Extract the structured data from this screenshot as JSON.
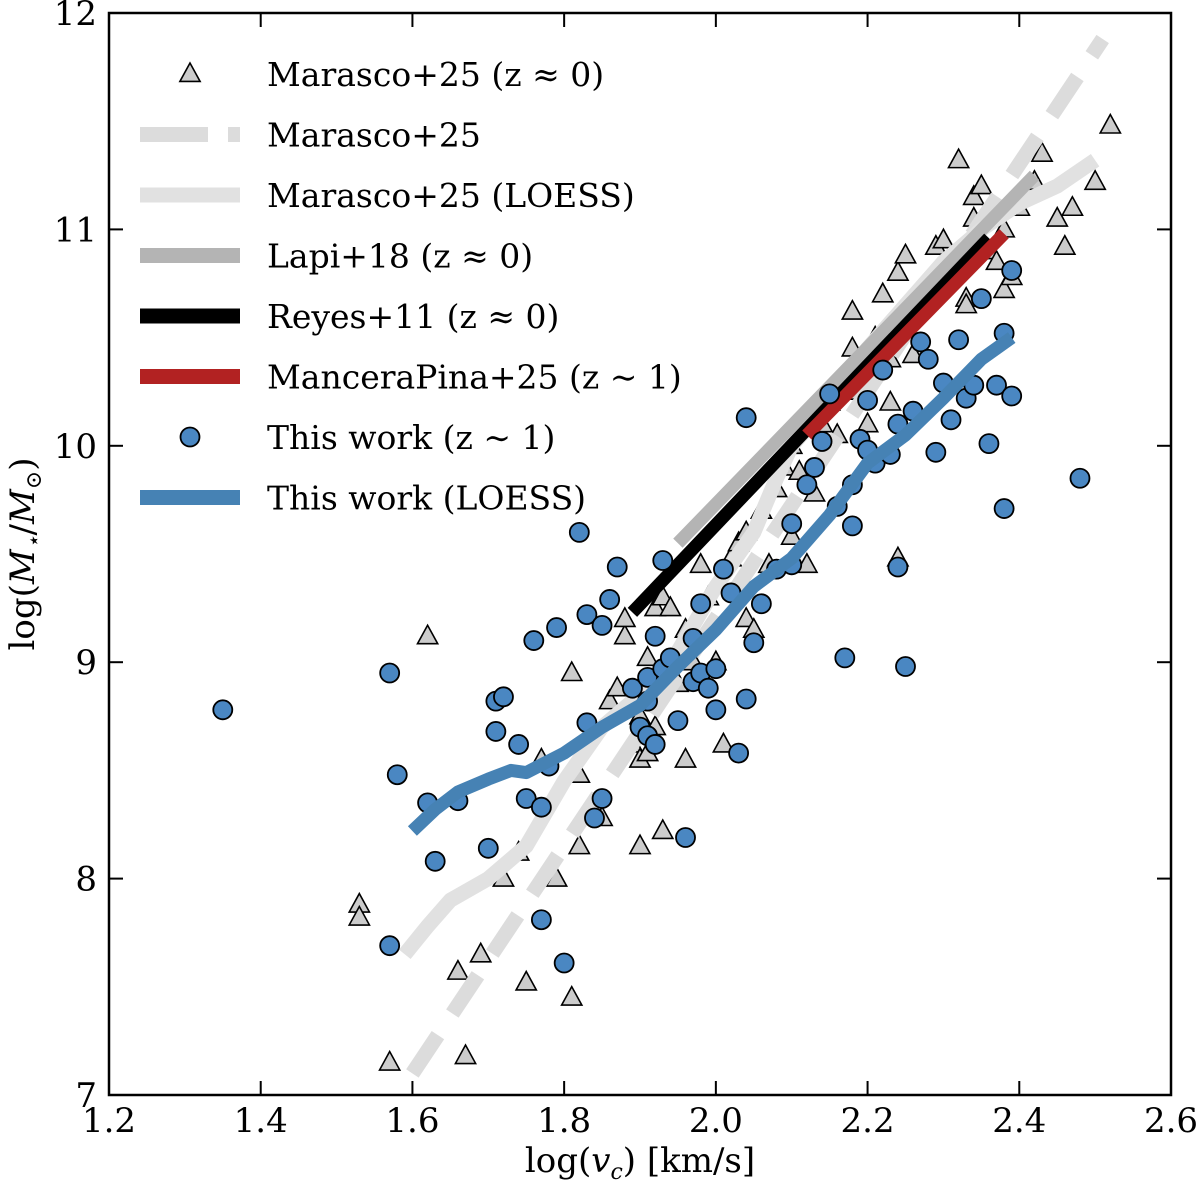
{
  "chart_data": {
    "type": "scatter",
    "xlabel": "log(v_c) [km/s]",
    "ylabel": "log(M_⋆/M_⊙)",
    "xlim": [
      1.2,
      2.6
    ],
    "ylim": [
      7,
      12
    ],
    "xticks": [
      1.2,
      1.4,
      1.6,
      1.8,
      2.0,
      2.2,
      2.4,
      2.6
    ],
    "xtick_labels": [
      "1.2",
      "1.4",
      "1.6",
      "1.8",
      "2.0",
      "2.2",
      "2.4",
      "2.6"
    ],
    "yticks": [
      7,
      8,
      9,
      10,
      11,
      12
    ],
    "ytick_labels": [
      "7",
      "8",
      "9",
      "10",
      "11",
      "12"
    ],
    "grid": false,
    "legend_position": "top-left",
    "legend": [
      {
        "label": "Marasco+25 (z ≈ 0)",
        "marker": "triangle",
        "color": "#cccccc"
      },
      {
        "label": "Marasco+25",
        "marker": "dashed-line",
        "color": "#dcdcdc"
      },
      {
        "label": "Marasco+25 (LOESS)",
        "marker": "line",
        "color": "#e1e1e1"
      },
      {
        "label": "Lapi+18 (z ≈ 0)",
        "marker": "line",
        "color": "#b4b4b4"
      },
      {
        "label": "Reyes+11 (z ≈ 0)",
        "marker": "line",
        "color": "#000000"
      },
      {
        "label": "ManceraPina+25 (z ∼ 1)",
        "marker": "line",
        "color": "#b22222"
      },
      {
        "label": "This work (z ∼ 1)",
        "marker": "circle",
        "color": "#4a87c2"
      },
      {
        "label": "This work (LOESS)",
        "marker": "line",
        "color": "#4682b4"
      }
    ],
    "series": [
      {
        "name": "Marasco+25 (z ≈ 0)",
        "kind": "scatter-triangle",
        "color": "#cccccc",
        "points": [
          [
            1.53,
            7.88
          ],
          [
            1.53,
            7.82
          ],
          [
            1.57,
            7.15
          ],
          [
            1.62,
            9.12
          ],
          [
            1.66,
            7.57
          ],
          [
            1.67,
            7.18
          ],
          [
            1.69,
            7.65
          ],
          [
            1.72,
            8.0
          ],
          [
            1.74,
            8.12
          ],
          [
            1.75,
            7.52
          ],
          [
            1.77,
            8.55
          ],
          [
            1.79,
            8.0
          ],
          [
            1.81,
            8.95
          ],
          [
            1.81,
            7.45
          ],
          [
            1.82,
            8.15
          ],
          [
            1.82,
            8.48
          ],
          [
            1.84,
            8.3
          ],
          [
            1.85,
            8.28
          ],
          [
            1.86,
            8.82
          ],
          [
            1.87,
            8.88
          ],
          [
            1.88,
            9.12
          ],
          [
            1.88,
            9.2
          ],
          [
            1.89,
            8.62
          ],
          [
            1.9,
            8.75
          ],
          [
            1.9,
            8.55
          ],
          [
            1.9,
            8.15
          ],
          [
            1.91,
            9.02
          ],
          [
            1.91,
            8.58
          ],
          [
            1.92,
            8.7
          ],
          [
            1.92,
            9.25
          ],
          [
            1.93,
            9.3
          ],
          [
            1.93,
            8.22
          ],
          [
            1.94,
            9.25
          ],
          [
            1.95,
            8.9
          ],
          [
            1.96,
            9.15
          ],
          [
            1.96,
            8.55
          ],
          [
            1.97,
            9.0
          ],
          [
            1.98,
            9.45
          ],
          [
            1.99,
            9.3
          ],
          [
            2.0,
            9.0
          ],
          [
            2.01,
            8.62
          ],
          [
            2.02,
            9.48
          ],
          [
            2.03,
            9.55
          ],
          [
            2.04,
            9.6
          ],
          [
            2.04,
            9.2
          ],
          [
            2.05,
            9.15
          ],
          [
            2.06,
            9.7
          ],
          [
            2.07,
            9.45
          ],
          [
            2.08,
            9.8
          ],
          [
            2.09,
            9.9
          ],
          [
            2.1,
            10.0
          ],
          [
            2.1,
            9.58
          ],
          [
            2.11,
            9.88
          ],
          [
            2.12,
            9.45
          ],
          [
            2.13,
            9.78
          ],
          [
            2.14,
            10.1
          ],
          [
            2.15,
            10.2
          ],
          [
            2.16,
            10.05
          ],
          [
            2.17,
            10.3
          ],
          [
            2.18,
            10.45
          ],
          [
            2.18,
            10.62
          ],
          [
            2.19,
            10.25
          ],
          [
            2.2,
            10.1
          ],
          [
            2.21,
            10.5
          ],
          [
            2.22,
            10.7
          ],
          [
            2.23,
            10.4
          ],
          [
            2.23,
            10.2
          ],
          [
            2.24,
            10.8
          ],
          [
            2.24,
            9.48
          ],
          [
            2.25,
            10.55
          ],
          [
            2.25,
            10.88
          ],
          [
            2.26,
            10.42
          ],
          [
            2.27,
            10.65
          ],
          [
            2.28,
            10.75
          ],
          [
            2.29,
            10.92
          ],
          [
            2.3,
            10.95
          ],
          [
            2.31,
            10.8
          ],
          [
            2.32,
            11.32
          ],
          [
            2.33,
            10.68
          ],
          [
            2.33,
            10.65
          ],
          [
            2.34,
            11.15
          ],
          [
            2.34,
            11.05
          ],
          [
            2.35,
            11.2
          ],
          [
            2.36,
            10.9
          ],
          [
            2.37,
            10.85
          ],
          [
            2.38,
            11.0
          ],
          [
            2.38,
            10.72
          ],
          [
            2.39,
            10.78
          ],
          [
            2.4,
            11.1
          ],
          [
            2.42,
            11.22
          ],
          [
            2.43,
            11.35
          ],
          [
            2.45,
            11.05
          ],
          [
            2.46,
            10.92
          ],
          [
            2.47,
            11.1
          ],
          [
            2.5,
            11.22
          ],
          [
            2.52,
            11.48
          ]
        ]
      },
      {
        "name": "Marasco+25",
        "kind": "dashed-line",
        "color": "#dcdcdc",
        "points": [
          [
            1.6,
            7.1
          ],
          [
            2.51,
            11.88
          ]
        ]
      },
      {
        "name": "Marasco+25 (LOESS)",
        "kind": "line",
        "color": "#e1e1e1",
        "points": [
          [
            1.59,
            7.65
          ],
          [
            1.62,
            7.78
          ],
          [
            1.65,
            7.9
          ],
          [
            1.7,
            8.0
          ],
          [
            1.75,
            8.15
          ],
          [
            1.8,
            8.45
          ],
          [
            1.85,
            8.7
          ],
          [
            1.9,
            8.85
          ],
          [
            1.95,
            9.05
          ],
          [
            2.0,
            9.35
          ],
          [
            2.05,
            9.6
          ],
          [
            2.08,
            9.85
          ],
          [
            2.1,
            10.0
          ],
          [
            2.15,
            10.2
          ],
          [
            2.2,
            10.45
          ],
          [
            2.25,
            10.65
          ],
          [
            2.3,
            10.85
          ],
          [
            2.35,
            11.0
          ],
          [
            2.4,
            11.12
          ],
          [
            2.45,
            11.2
          ],
          [
            2.5,
            11.32
          ]
        ]
      },
      {
        "name": "Lapi+18 (z ≈ 0)",
        "kind": "line",
        "color": "#b4b4b4",
        "points": [
          [
            1.95,
            9.55
          ],
          [
            2.42,
            11.25
          ]
        ]
      },
      {
        "name": "Reyes+11 (z ≈ 0)",
        "kind": "line",
        "color": "#000000",
        "points": [
          [
            1.89,
            9.23
          ],
          [
            2.36,
            10.96
          ]
        ]
      },
      {
        "name": "ManceraPina+25 (z ∼ 1)",
        "kind": "line",
        "color": "#b22222",
        "points": [
          [
            2.12,
            10.05
          ],
          [
            2.38,
            10.98
          ]
        ]
      },
      {
        "name": "This work (z ∼ 1)",
        "kind": "scatter-circle",
        "color": "#4a87c2",
        "points": [
          [
            1.35,
            8.78
          ],
          [
            1.57,
            8.95
          ],
          [
            1.57,
            7.69
          ],
          [
            1.58,
            8.48
          ],
          [
            1.62,
            8.35
          ],
          [
            1.63,
            8.08
          ],
          [
            1.66,
            8.36
          ],
          [
            1.7,
            8.14
          ],
          [
            1.71,
            8.82
          ],
          [
            1.71,
            8.68
          ],
          [
            1.72,
            8.84
          ],
          [
            1.74,
            8.62
          ],
          [
            1.75,
            8.37
          ],
          [
            1.76,
            9.1
          ],
          [
            1.77,
            8.33
          ],
          [
            1.77,
            7.81
          ],
          [
            1.78,
            8.52
          ],
          [
            1.79,
            9.16
          ],
          [
            1.8,
            7.61
          ],
          [
            1.82,
            9.6
          ],
          [
            1.83,
            9.22
          ],
          [
            1.83,
            8.72
          ],
          [
            1.84,
            8.28
          ],
          [
            1.85,
            9.17
          ],
          [
            1.85,
            8.37
          ],
          [
            1.86,
            9.29
          ],
          [
            1.87,
            9.44
          ],
          [
            1.89,
            8.88
          ],
          [
            1.9,
            8.7
          ],
          [
            1.91,
            8.93
          ],
          [
            1.91,
            8.82
          ],
          [
            1.91,
            8.66
          ],
          [
            1.92,
            9.12
          ],
          [
            1.92,
            8.62
          ],
          [
            1.93,
            9.47
          ],
          [
            1.93,
            8.97
          ],
          [
            1.94,
            9.02
          ],
          [
            1.95,
            8.73
          ],
          [
            1.96,
            8.19
          ],
          [
            1.97,
            9.11
          ],
          [
            1.97,
            8.91
          ],
          [
            1.98,
            8.95
          ],
          [
            1.98,
            9.27
          ],
          [
            1.99,
            8.88
          ],
          [
            2.0,
            8.97
          ],
          [
            2.0,
            8.78
          ],
          [
            2.01,
            9.43
          ],
          [
            2.02,
            9.32
          ],
          [
            2.03,
            8.58
          ],
          [
            2.04,
            10.13
          ],
          [
            2.04,
            8.83
          ],
          [
            2.05,
            9.09
          ],
          [
            2.06,
            9.27
          ],
          [
            2.08,
            9.43
          ],
          [
            2.1,
            9.64
          ],
          [
            2.1,
            9.45
          ],
          [
            2.12,
            9.82
          ],
          [
            2.13,
            9.9
          ],
          [
            2.14,
            10.02
          ],
          [
            2.15,
            10.24
          ],
          [
            2.16,
            9.72
          ],
          [
            2.17,
            9.02
          ],
          [
            2.18,
            9.82
          ],
          [
            2.18,
            9.63
          ],
          [
            2.19,
            10.03
          ],
          [
            2.2,
            10.21
          ],
          [
            2.2,
            9.98
          ],
          [
            2.21,
            9.92
          ],
          [
            2.22,
            10.35
          ],
          [
            2.23,
            9.96
          ],
          [
            2.24,
            9.44
          ],
          [
            2.24,
            10.1
          ],
          [
            2.25,
            8.98
          ],
          [
            2.26,
            10.16
          ],
          [
            2.27,
            10.48
          ],
          [
            2.28,
            10.4
          ],
          [
            2.29,
            9.97
          ],
          [
            2.3,
            10.29
          ],
          [
            2.31,
            10.12
          ],
          [
            2.32,
            10.49
          ],
          [
            2.33,
            10.22
          ],
          [
            2.34,
            10.28
          ],
          [
            2.35,
            10.68
          ],
          [
            2.36,
            10.01
          ],
          [
            2.37,
            10.28
          ],
          [
            2.38,
            10.52
          ],
          [
            2.38,
            9.71
          ],
          [
            2.39,
            10.81
          ],
          [
            2.39,
            10.23
          ],
          [
            2.48,
            9.85
          ]
        ]
      },
      {
        "name": "This work (LOESS)",
        "kind": "line",
        "color": "#4682b4",
        "points": [
          [
            1.6,
            8.22
          ],
          [
            1.63,
            8.32
          ],
          [
            1.66,
            8.4
          ],
          [
            1.7,
            8.46
          ],
          [
            1.73,
            8.5
          ],
          [
            1.75,
            8.49
          ],
          [
            1.8,
            8.58
          ],
          [
            1.85,
            8.7
          ],
          [
            1.9,
            8.8
          ],
          [
            1.95,
            8.98
          ],
          [
            2.0,
            9.15
          ],
          [
            2.05,
            9.35
          ],
          [
            2.1,
            9.48
          ],
          [
            2.15,
            9.68
          ],
          [
            2.2,
            9.92
          ],
          [
            2.25,
            10.05
          ],
          [
            2.3,
            10.22
          ],
          [
            2.35,
            10.4
          ],
          [
            2.39,
            10.5
          ]
        ]
      }
    ]
  }
}
